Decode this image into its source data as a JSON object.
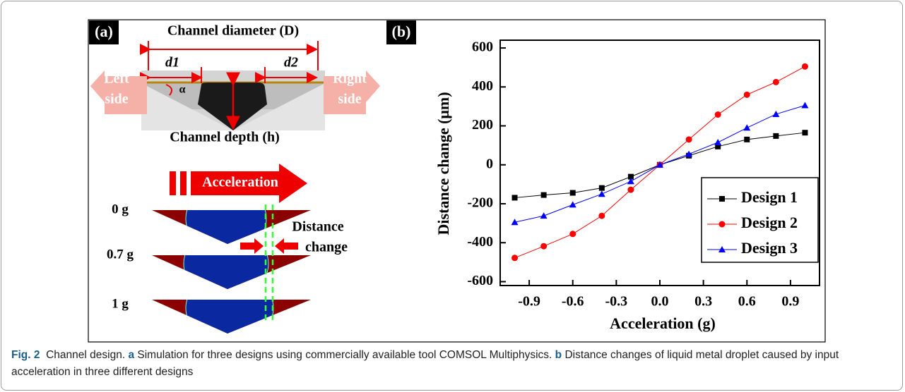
{
  "figure": {
    "panel_a": {
      "label": "(a)",
      "diameter": "Channel diameter (D)",
      "d1": "d1",
      "d2": "d2",
      "left": [
        "Left",
        "side"
      ],
      "right": [
        "Right",
        "side"
      ],
      "alpha": "α",
      "depth": "Channel depth (h)",
      "acceleration": "Acceleration",
      "states": [
        "0 g",
        "0.7 g",
        "1 g"
      ],
      "distance": [
        "Distance",
        "change"
      ]
    },
    "panel_b": {
      "label": "(b)"
    },
    "caption": {
      "fig": "Fig. 2",
      "title": "Channel design.",
      "a": "a",
      "a_text": "Simulation for three designs using commercially available tool COMSOL Multiphysics.",
      "b": "b",
      "b_text": "Distance changes of liquid metal droplet caused by input acceleration in three different designs"
    }
  },
  "chart_data": {
    "type": "line",
    "x_label": "Acceleration (g)",
    "y_label": "Distance change (μm)",
    "x": [
      -1,
      -0.8,
      -0.6,
      -0.4,
      -0.2,
      0,
      0.2,
      0.4,
      0.6,
      0.8,
      1
    ],
    "series": [
      {
        "name": "Design 1",
        "color": "#000000",
        "marker": "square",
        "values": [
          -169,
          -155,
          -144,
          -119,
          -61,
          0,
          47,
          94,
          130,
          148,
          165
        ]
      },
      {
        "name": "Design 2",
        "color": "#ff0000",
        "marker": "circle",
        "values": [
          -478,
          -418,
          -355,
          -262,
          -128,
          0,
          130,
          258,
          360,
          425,
          505
        ]
      },
      {
        "name": "Design 3",
        "color": "#0000ff",
        "marker": "triangle",
        "values": [
          -295,
          -262,
          -205,
          -150,
          -85,
          0,
          55,
          115,
          190,
          260,
          305
        ]
      }
    ],
    "xlim": [
      -1.1,
      1.1
    ],
    "ylim": [
      -620,
      640
    ],
    "xticks": [
      -0.9,
      -0.6,
      -0.3,
      {
        "value": 0,
        "label": "0.0"
      },
      0.3,
      0.6,
      0.9
    ],
    "yticks": [
      -600,
      -400,
      -200,
      0,
      200,
      400,
      600
    ],
    "legend": "lower-right"
  }
}
